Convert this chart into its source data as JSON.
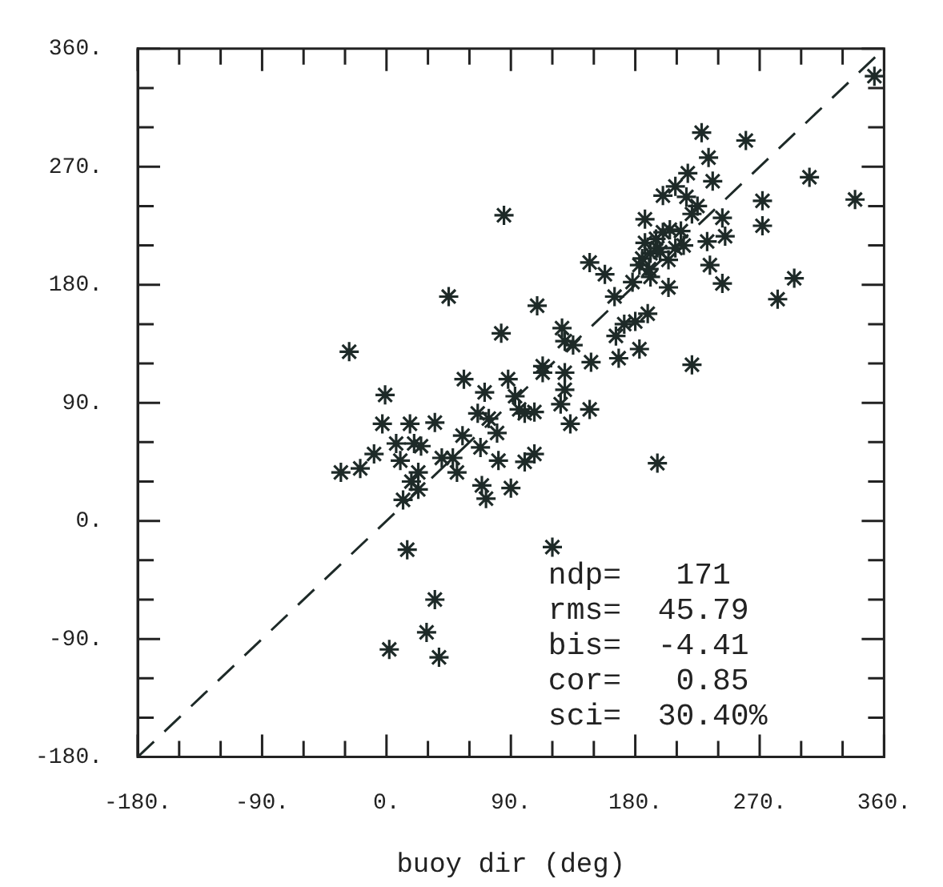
{
  "chart_data": {
    "type": "scatter",
    "xlabel": "buoy dir (deg)",
    "marker": "cross",
    "grid": false,
    "legend": false,
    "xlim": [
      -180,
      360
    ],
    "ylim": [
      -180,
      360
    ],
    "xticks": [
      {
        "value": -180,
        "label": "-180."
      },
      {
        "value": -150,
        "label": null
      },
      {
        "value": -120,
        "label": null
      },
      {
        "value": -90,
        "label": "-90."
      },
      {
        "value": -60,
        "label": null
      },
      {
        "value": -30,
        "label": null
      },
      {
        "value": 0,
        "label": "0."
      },
      {
        "value": 30,
        "label": null
      },
      {
        "value": 60,
        "label": null
      },
      {
        "value": 90,
        "label": "90."
      },
      {
        "value": 120,
        "label": null
      },
      {
        "value": 150,
        "label": null
      },
      {
        "value": 180,
        "label": "180."
      },
      {
        "value": 210,
        "label": null
      },
      {
        "value": 240,
        "label": null
      },
      {
        "value": 270,
        "label": "270."
      },
      {
        "value": 300,
        "label": null
      },
      {
        "value": 330,
        "label": null
      },
      {
        "value": 360,
        "label": "360."
      }
    ],
    "yticks": [
      {
        "value": -180,
        "label": "-180."
      },
      {
        "value": -150,
        "label": null
      },
      {
        "value": -120,
        "label": null
      },
      {
        "value": -90,
        "label": "-90."
      },
      {
        "value": -60,
        "label": null
      },
      {
        "value": -30,
        "label": null
      },
      {
        "value": 0,
        "label": "0."
      },
      {
        "value": 30,
        "label": null
      },
      {
        "value": 60,
        "label": null
      },
      {
        "value": 90,
        "label": "90."
      },
      {
        "value": 120,
        "label": null
      },
      {
        "value": 150,
        "label": null
      },
      {
        "value": 180,
        "label": "180."
      },
      {
        "value": 210,
        "label": null
      },
      {
        "value": 240,
        "label": null
      },
      {
        "value": 270,
        "label": "270."
      },
      {
        "value": 300,
        "label": null
      },
      {
        "value": 330,
        "label": null
      },
      {
        "value": 360,
        "label": "360."
      }
    ],
    "series": [
      {
        "color": "#1e2a28",
        "x": [
          353,
          228,
          260,
          233,
          306,
          218,
          236,
          339,
          272,
          272,
          200,
          209,
          243,
          245,
          232,
          295,
          283,
          243,
          234,
          221,
          196,
          85,
          45,
          109,
          83,
          -27,
          147,
          158,
          165,
          178,
          191,
          187,
          196,
          209,
          204,
          187,
          183,
          213,
          221,
          217,
          191,
          204,
          189,
          180,
          172,
          183,
          166,
          168,
          148,
          127,
          135,
          129,
          129,
          129,
          126,
          133,
          147,
          113,
          113,
          88,
          93,
          96,
          100,
          107,
          56,
          71,
          66,
          74,
          80,
          68,
          81,
          100,
          107,
          90,
          55,
          48,
          40,
          51,
          69,
          72,
          -1,
          -3,
          17,
          35,
          7,
          20,
          25,
          -9,
          -19,
          -33,
          10,
          23,
          23,
          12,
          18,
          15,
          120,
          35,
          29,
          2,
          38,
          195,
          200,
          185,
          205,
          215,
          190,
          225,
          198
        ],
        "values": [
          339,
          296,
          290,
          277,
          262,
          265,
          259,
          245,
          244,
          225,
          248,
          255,
          231,
          217,
          213,
          185,
          169,
          181,
          195,
          119,
          44,
          233,
          171,
          164,
          143,
          129,
          197,
          188,
          171,
          182,
          204,
          212,
          208,
          208,
          199,
          230,
          195,
          221,
          234,
          247,
          186,
          178,
          158,
          152,
          150,
          131,
          141,
          124,
          121,
          147,
          134,
          137,
          113,
          100,
          89,
          74,
          85,
          118,
          113,
          108,
          95,
          85,
          82,
          83,
          108,
          98,
          82,
          78,
          67,
          56,
          46,
          45,
          51,
          25,
          65,
          48,
          48,
          37,
          27,
          17,
          96,
          74,
          74,
          75,
          59,
          59,
          57,
          51,
          40,
          37,
          46,
          37,
          24,
          16,
          30,
          -22,
          -20,
          -60,
          -85,
          -98,
          -104,
          215,
          220,
          200,
          222,
          210,
          192,
          240,
          205
        ]
      },
      {
        "type": "line",
        "color": "#1e2a28",
        "line_style": "dashed",
        "marker": "none",
        "x": [
          -180,
          360
        ],
        "values": [
          -180,
          360
        ]
      }
    ],
    "annotations": [
      "ndp=   171",
      "rms=  45.79",
      "bis=  -4.41",
      "cor=   0.85",
      "sci=  30.40%"
    ]
  }
}
